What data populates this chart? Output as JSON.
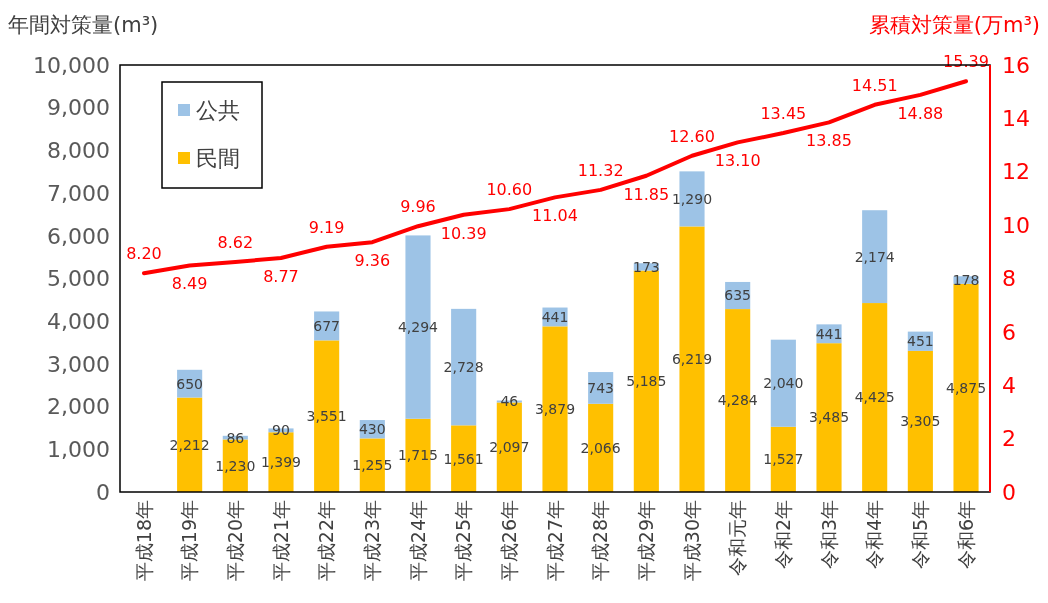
{
  "chart_data": {
    "type": "bar",
    "stacked": true,
    "ylabel": "年間対策量(m³)",
    "y2label": "累積対策量(万m³)",
    "categories": [
      "平成18年",
      "平成19年",
      "平成20年",
      "平成21年",
      "平成22年",
      "平成23年",
      "平成24年",
      "平成25年",
      "平成26年",
      "平成27年",
      "平成28年",
      "平成29年",
      "平成30年",
      "令和元年",
      "令和2年",
      "令和3年",
      "令和4年",
      "令和5年",
      "令和6年"
    ],
    "series": [
      {
        "name": "民間",
        "color": "#ffc000",
        "values": [
          null,
          2212,
          1230,
          1399,
          3551,
          1255,
          1715,
          1561,
          2097,
          3879,
          2066,
          5185,
          6219,
          4284,
          1527,
          3485,
          4425,
          3305,
          4875
        ],
        "value_labels": [
          null,
          "2,212",
          "1,230",
          "1,399",
          "3,551",
          "1,255",
          "1,715",
          "1,561",
          "2,097",
          "3,879",
          "2,066",
          "5,185",
          "6,219",
          "4,284",
          "1,527",
          "3,485",
          "4,425",
          "3,305",
          "4,875"
        ]
      },
      {
        "name": "公共",
        "color": "#9dc3e6",
        "values": [
          null,
          650,
          86,
          90,
          677,
          430,
          4294,
          2728,
          46,
          441,
          743,
          173,
          1290,
          635,
          2040,
          441,
          2174,
          451,
          178
        ],
        "value_labels": [
          null,
          "650",
          "86",
          "90",
          "677",
          "430",
          "4,294",
          "2,728",
          "46",
          "441",
          "743",
          "173",
          "1,290",
          "635",
          "2,040",
          "441",
          "2,174",
          "451",
          "178"
        ]
      },
      {
        "type": "line",
        "axis": "y2",
        "color": "#ff0000",
        "values": [
          8.2,
          8.49,
          8.62,
          8.77,
          9.19,
          9.36,
          9.96,
          10.39,
          10.6,
          11.04,
          11.32,
          11.85,
          12.6,
          13.1,
          13.45,
          13.85,
          14.51,
          14.88,
          15.39
        ],
        "value_labels": [
          "8.20",
          "8.49",
          "8.62",
          "8.77",
          "9.19",
          "9.36",
          "9.96",
          "10.39",
          "10.60",
          "11.04",
          "11.32",
          "11.85",
          "12.60",
          "13.10",
          "13.45",
          "13.85",
          "14.51",
          "14.88",
          "15.39"
        ]
      }
    ],
    "ylim": [
      0,
      10000
    ],
    "yticks": [
      0,
      {
        "value": 1000,
        "label": "1,000"
      },
      {
        "value": 2000,
        "label": "2,000"
      },
      {
        "value": 3000,
        "label": "3,000"
      },
      {
        "value": 4000,
        "label": "4,000"
      },
      {
        "value": 5000,
        "label": "5,000"
      },
      {
        "value": 6000,
        "label": "6,000"
      },
      {
        "value": 7000,
        "label": "7,000"
      },
      {
        "value": 8000,
        "label": "8,000"
      },
      {
        "value": 9000,
        "label": "9,000"
      },
      {
        "value": 10000,
        "label": "10,000"
      }
    ],
    "y2lim": [
      0,
      16
    ],
    "y2ticks": [
      0,
      2,
      4,
      6,
      8,
      10,
      12,
      14,
      16
    ],
    "legend": "top left",
    "grid": false
  }
}
